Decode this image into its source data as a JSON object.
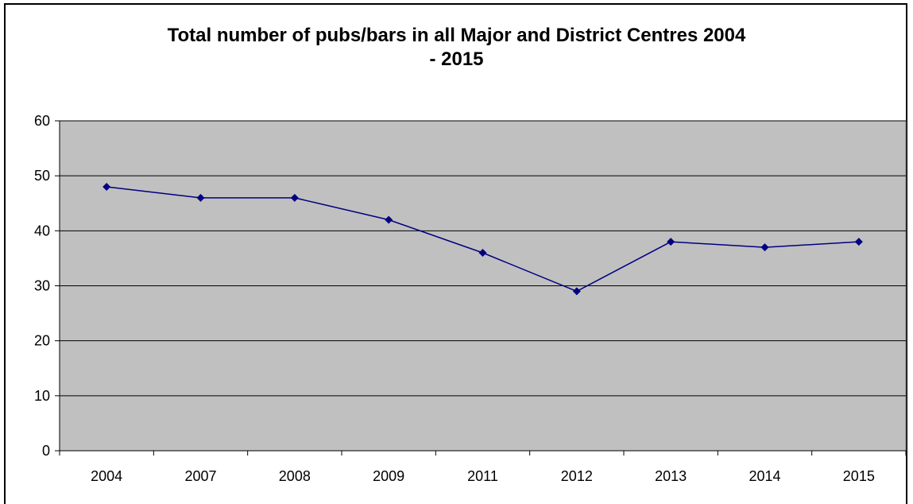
{
  "chart_data": {
    "type": "line",
    "title_lines": [
      "Total number of pubs/bars in all Major and District Centres 2004",
      "- 2015"
    ],
    "categories": [
      "2004",
      "2007",
      "2008",
      "2009",
      "2011",
      "2012",
      "2013",
      "2014",
      "2015"
    ],
    "series": [
      {
        "values": [
          48,
          46,
          46,
          42,
          36,
          29,
          38,
          37,
          38
        ],
        "color": "#000080"
      }
    ],
    "ylim": [
      0,
      60
    ],
    "yticks": [
      0,
      10,
      20,
      30,
      40,
      50,
      60
    ],
    "grid": true,
    "plot_background": "#C0C0C0",
    "legend": "none",
    "marker": "diamond"
  }
}
